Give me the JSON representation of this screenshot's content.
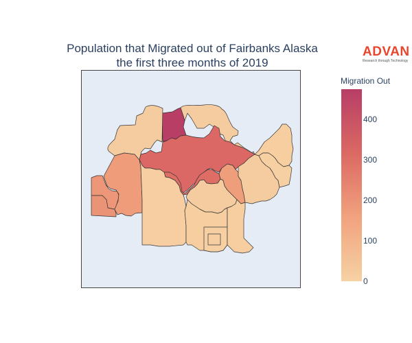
{
  "title_line1": "Population that Migrated out of Fairbanks Alaska",
  "title_line2": "the first three months of 2019",
  "logo": {
    "name": "ADVAN",
    "tagline": "Research through Technology"
  },
  "colorbar": {
    "title": "Migration Out",
    "min": 0,
    "max": 475,
    "ticks": [
      "0",
      "100",
      "200",
      "300",
      "400"
    ],
    "tick_values": [
      0,
      100,
      200,
      300,
      400
    ],
    "colorscale": [
      "#f6d2a4",
      "#f1a37e",
      "#dc6a64",
      "#b83d66"
    ]
  },
  "regions": [
    {
      "name": "north-tract",
      "value": 470
    },
    {
      "name": "northern-upper",
      "value": 20
    },
    {
      "name": "northwest",
      "value": 15
    },
    {
      "name": "central-large",
      "value": 320
    },
    {
      "name": "central-lobe",
      "value": 305
    },
    {
      "name": "west-upper",
      "value": 190
    },
    {
      "name": "west-lower",
      "value": 200
    },
    {
      "name": "west-west",
      "value": 175
    },
    {
      "name": "southwest-large",
      "value": 12
    },
    {
      "name": "east-center",
      "value": 170
    },
    {
      "name": "center-mid",
      "value": 20
    },
    {
      "name": "east-east",
      "value": 20
    },
    {
      "name": "northeast",
      "value": 15
    },
    {
      "name": "east-slice",
      "value": 10
    },
    {
      "name": "south-center",
      "value": 15
    },
    {
      "name": "south-small-a",
      "value": 10
    },
    {
      "name": "south-small-b",
      "value": 12
    },
    {
      "name": "south-east",
      "value": 15
    }
  ]
}
